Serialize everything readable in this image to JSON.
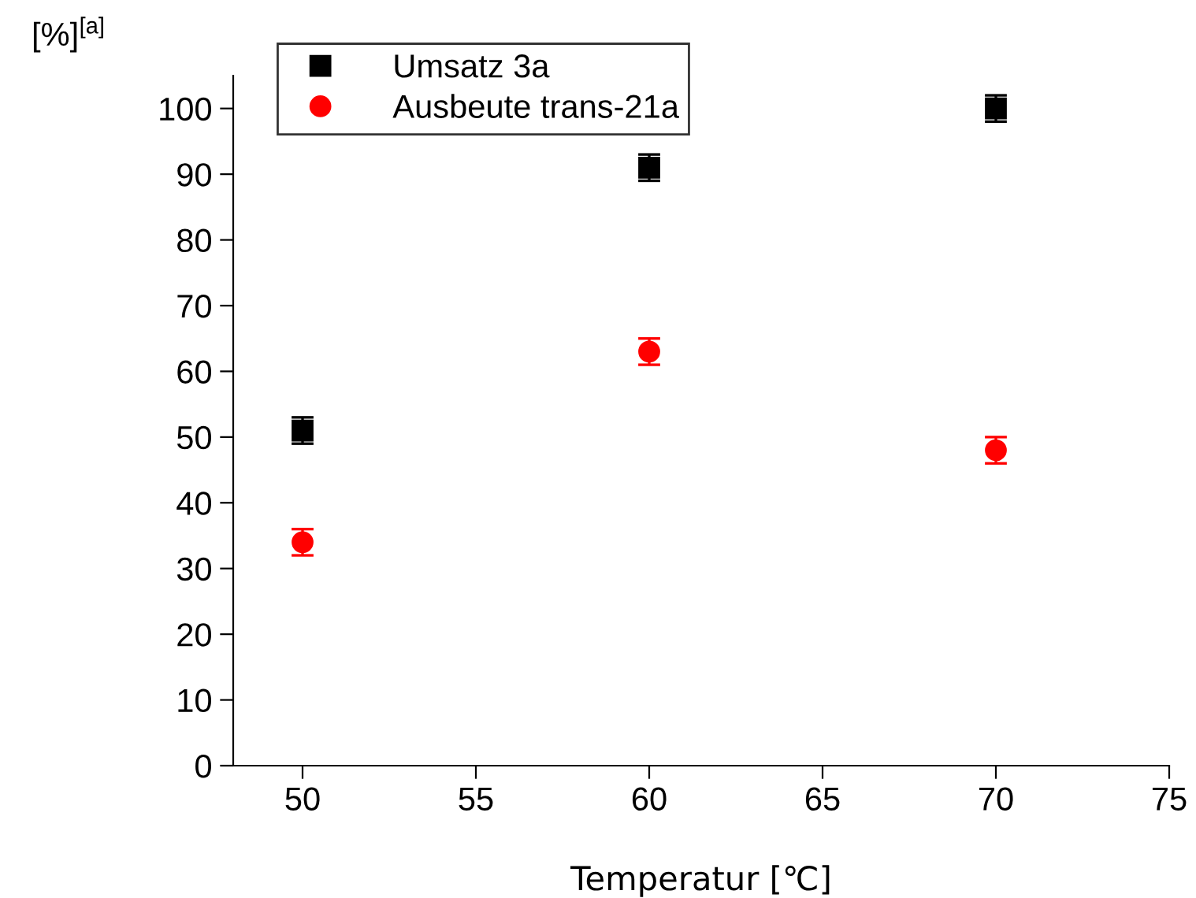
{
  "chart_data": {
    "type": "scatter",
    "xlabel": "Temperatur [℃]",
    "ylabel": "[%]$^{[a]}$",
    "x": [
      50,
      60,
      70
    ],
    "series": [
      {
        "name": "Umsatz 3a",
        "color": "#000000",
        "marker": "square",
        "values": [
          51,
          91,
          100
        ],
        "errors": [
          2,
          2,
          2
        ]
      },
      {
        "name": "Ausbeute trans-21a",
        "color": "#ff0000",
        "marker": "circle",
        "values": [
          34,
          63,
          48
        ],
        "errors": [
          2,
          2,
          2
        ]
      }
    ],
    "xlim": [
      48,
      75
    ],
    "xticks": [
      50,
      55,
      60,
      65,
      70,
      75
    ],
    "ylim": [
      0,
      105
    ],
    "yticks": [
      0,
      10,
      20,
      30,
      40,
      50,
      60,
      70,
      80,
      90,
      100
    ],
    "grid": false,
    "legend": "top left"
  }
}
